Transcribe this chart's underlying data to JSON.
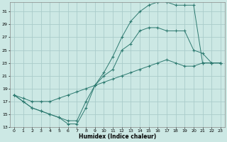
{
  "xlabel": "Humidex (Indice chaleur)",
  "background_color": "#cce8e4",
  "grid_color": "#aaccca",
  "line_color": "#2d7a70",
  "xlim": [
    -0.5,
    23.5
  ],
  "ylim": [
    13,
    32.5
  ],
  "yticks": [
    13,
    15,
    17,
    19,
    21,
    23,
    25,
    27,
    29,
    31
  ],
  "xticks": [
    0,
    1,
    2,
    3,
    4,
    5,
    6,
    7,
    8,
    9,
    10,
    11,
    12,
    13,
    14,
    15,
    16,
    17,
    18,
    19,
    20,
    21,
    22,
    23
  ],
  "curve1_x": [
    0,
    1,
    2,
    3,
    4,
    5,
    6,
    7,
    8,
    9,
    10,
    11,
    12,
    13,
    14,
    15,
    16,
    17,
    18,
    19,
    20,
    21,
    22,
    23
  ],
  "curve1_y": [
    18,
    17,
    16,
    15.5,
    15,
    14.5,
    13.5,
    13.5,
    16,
    19.5,
    21.5,
    24,
    27,
    29.5,
    31,
    32,
    32.5,
    32.5,
    32,
    32,
    32,
    23,
    23,
    23
  ],
  "curve2_x": [
    0,
    1,
    2,
    3,
    4,
    5,
    6,
    7,
    8,
    9,
    10,
    11,
    12,
    13,
    14,
    15,
    16,
    17,
    18,
    19,
    20,
    21,
    22,
    23
  ],
  "curve2_y": [
    18,
    17,
    16,
    15.5,
    15,
    14.5,
    14,
    14,
    17,
    19.5,
    21,
    22,
    25,
    26,
    28,
    28.5,
    28.5,
    28,
    28,
    28,
    25,
    24.5,
    23,
    23
  ],
  "curve3_x": [
    0,
    1,
    2,
    3,
    4,
    5,
    6,
    7,
    8,
    9,
    10,
    11,
    12,
    13,
    14,
    15,
    16,
    17,
    18,
    19,
    20,
    21,
    22,
    23
  ],
  "curve3_y": [
    18,
    17.5,
    17,
    17,
    17,
    17.5,
    18,
    18.5,
    19,
    19.5,
    20,
    20.5,
    21,
    21.5,
    22,
    22.5,
    23,
    23.5,
    23,
    22.5,
    22.5,
    23,
    23,
    23
  ]
}
